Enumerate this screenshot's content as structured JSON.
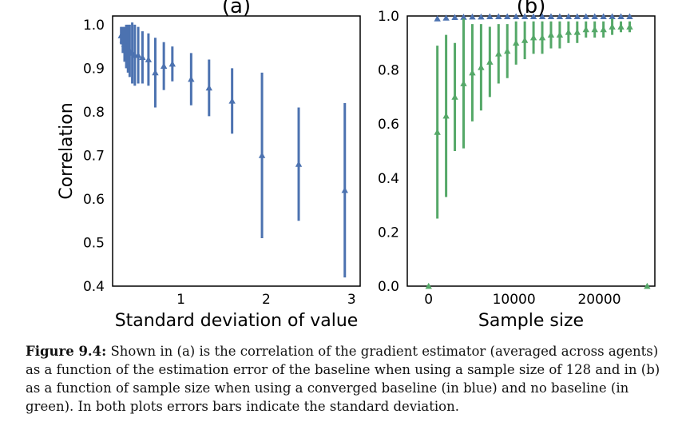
{
  "chart_data": [
    {
      "type": "scatter",
      "title": "(a)",
      "xlabel": "Standard deviation of value",
      "ylabel": "Correlation",
      "xlim": [
        0.2,
        3.1
      ],
      "ylim": [
        0.4,
        1.02
      ],
      "xticks": [
        {
          "value": 1,
          "label": "1"
        },
        {
          "value": 2,
          "label": "2"
        },
        {
          "value": 3,
          "label": "3"
        }
      ],
      "yticks": [
        {
          "value": 0.4,
          "label": "0.4"
        },
        {
          "value": 0.5,
          "label": "0.5"
        },
        {
          "value": 0.6,
          "label": "0.6"
        },
        {
          "value": 0.7,
          "label": "0.7"
        },
        {
          "value": 0.8,
          "label": "0.8"
        },
        {
          "value": 0.9,
          "label": "0.9"
        },
        {
          "value": 1.0,
          "label": "1.0"
        }
      ],
      "grid": false,
      "series": [
        {
          "color": "#4c72b0",
          "marker": "triangle",
          "points": [
            {
              "x": 0.3,
              "y": 0.975,
              "err": 0.02
            },
            {
              "x": 0.32,
              "y": 0.965,
              "err": 0.03
            },
            {
              "x": 0.34,
              "y": 0.955,
              "err": 0.04
            },
            {
              "x": 0.36,
              "y": 0.95,
              "err": 0.05
            },
            {
              "x": 0.38,
              "y": 0.945,
              "err": 0.055
            },
            {
              "x": 0.4,
              "y": 0.94,
              "err": 0.06
            },
            {
              "x": 0.43,
              "y": 0.935,
              "err": 0.07
            },
            {
              "x": 0.46,
              "y": 0.93,
              "err": 0.07
            },
            {
              "x": 0.5,
              "y": 0.93,
              "err": 0.065
            },
            {
              "x": 0.55,
              "y": 0.925,
              "err": 0.06
            },
            {
              "x": 0.62,
              "y": 0.92,
              "err": 0.06
            },
            {
              "x": 0.7,
              "y": 0.89,
              "err": 0.08
            },
            {
              "x": 0.8,
              "y": 0.905,
              "err": 0.055
            },
            {
              "x": 0.9,
              "y": 0.91,
              "err": 0.04
            },
            {
              "x": 1.12,
              "y": 0.875,
              "err": 0.06
            },
            {
              "x": 1.33,
              "y": 0.855,
              "err": 0.065
            },
            {
              "x": 1.6,
              "y": 0.825,
              "err": 0.075
            },
            {
              "x": 1.95,
              "y": 0.7,
              "err": 0.19
            },
            {
              "x": 2.38,
              "y": 0.68,
              "err": 0.13
            },
            {
              "x": 2.92,
              "y": 0.62,
              "err": 0.2
            }
          ]
        }
      ]
    },
    {
      "type": "scatter",
      "title": "(b)",
      "xlabel": "Sample size",
      "ylabel": "",
      "xlim": [
        -2500,
        26500
      ],
      "ylim": [
        0.0,
        1.0
      ],
      "xticks": [
        {
          "value": 0,
          "label": "0"
        },
        {
          "value": 10000,
          "label": "10000"
        },
        {
          "value": 20000,
          "label": "20000"
        }
      ],
      "yticks": [
        {
          "value": 0.0,
          "label": "0.0"
        },
        {
          "value": 0.2,
          "label": "0.2"
        },
        {
          "value": 0.4,
          "label": "0.4"
        },
        {
          "value": 0.6,
          "label": "0.6"
        },
        {
          "value": 0.8,
          "label": "0.8"
        },
        {
          "value": 1.0,
          "label": "1.0"
        }
      ],
      "grid": false,
      "series": [
        {
          "color": "#4c72b0",
          "marker": "triangle",
          "points": [
            {
              "x": 1024,
              "y": 0.99,
              "err": 0.005
            },
            {
              "x": 2048,
              "y": 0.993,
              "err": 0.004
            },
            {
              "x": 3072,
              "y": 0.995,
              "err": 0.003
            },
            {
              "x": 4096,
              "y": 0.996,
              "err": 0.003
            },
            {
              "x": 5120,
              "y": 0.997,
              "err": 0.002
            },
            {
              "x": 6144,
              "y": 0.997,
              "err": 0.002
            },
            {
              "x": 7168,
              "y": 0.998,
              "err": 0.002
            },
            {
              "x": 8192,
              "y": 0.998,
              "err": 0.002
            },
            {
              "x": 9216,
              "y": 0.998,
              "err": 0.002
            },
            {
              "x": 10240,
              "y": 0.998,
              "err": 0.001
            },
            {
              "x": 11264,
              "y": 0.998,
              "err": 0.001
            },
            {
              "x": 12288,
              "y": 0.998,
              "err": 0.001
            },
            {
              "x": 13312,
              "y": 0.998,
              "err": 0.001
            },
            {
              "x": 14336,
              "y": 0.998,
              "err": 0.001
            },
            {
              "x": 15360,
              "y": 0.998,
              "err": 0.001
            },
            {
              "x": 16384,
              "y": 0.998,
              "err": 0.001
            },
            {
              "x": 17408,
              "y": 0.998,
              "err": 0.001
            },
            {
              "x": 18432,
              "y": 0.998,
              "err": 0.001
            },
            {
              "x": 19456,
              "y": 0.998,
              "err": 0.001
            },
            {
              "x": 20480,
              "y": 0.998,
              "err": 0.001
            },
            {
              "x": 21504,
              "y": 0.998,
              "err": 0.001
            },
            {
              "x": 22528,
              "y": 0.998,
              "err": 0.001
            },
            {
              "x": 23552,
              "y": 0.998,
              "err": 0.001
            }
          ]
        },
        {
          "color": "#55a868",
          "marker": "triangle",
          "points": [
            {
              "x": 1024,
              "y": 0.57,
              "err": 0.32
            },
            {
              "x": 2048,
              "y": 0.63,
              "err": 0.3
            },
            {
              "x": 3072,
              "y": 0.7,
              "err": 0.2
            },
            {
              "x": 4096,
              "y": 0.75,
              "err": 0.24
            },
            {
              "x": 5120,
              "y": 0.79,
              "err": 0.18
            },
            {
              "x": 6144,
              "y": 0.81,
              "err": 0.16
            },
            {
              "x": 7168,
              "y": 0.83,
              "err": 0.13
            },
            {
              "x": 8192,
              "y": 0.86,
              "err": 0.11
            },
            {
              "x": 9216,
              "y": 0.87,
              "err": 0.1
            },
            {
              "x": 10240,
              "y": 0.9,
              "err": 0.08
            },
            {
              "x": 11264,
              "y": 0.91,
              "err": 0.07
            },
            {
              "x": 12288,
              "y": 0.92,
              "err": 0.06
            },
            {
              "x": 13312,
              "y": 0.92,
              "err": 0.06
            },
            {
              "x": 14336,
              "y": 0.93,
              "err": 0.05
            },
            {
              "x": 15360,
              "y": 0.93,
              "err": 0.05
            },
            {
              "x": 16384,
              "y": 0.94,
              "err": 0.04
            },
            {
              "x": 17408,
              "y": 0.94,
              "err": 0.04
            },
            {
              "x": 18432,
              "y": 0.95,
              "err": 0.03
            },
            {
              "x": 19456,
              "y": 0.95,
              "err": 0.03
            },
            {
              "x": 20480,
              "y": 0.95,
              "err": 0.03
            },
            {
              "x": 21504,
              "y": 0.96,
              "err": 0.03
            },
            {
              "x": 22528,
              "y": 0.96,
              "err": 0.02
            },
            {
              "x": 23552,
              "y": 0.96,
              "err": 0.02
            },
            {
              "x": 0,
              "y": 0.0,
              "err": 0
            },
            {
              "x": 25600,
              "y": 0.0,
              "err": 0
            }
          ]
        }
      ]
    }
  ],
  "caption": {
    "label": "Figure 9.4:",
    "text": " Shown in (a) is the correlation of the gradient estimator (averaged across agents) as a function of the estimation error of the baseline when using a sample size of 128 and in (b) as a function of sample size when using a converged baseline (in blue) and no baseline (in green). In both plots errors bars indicate the standard deviation."
  }
}
